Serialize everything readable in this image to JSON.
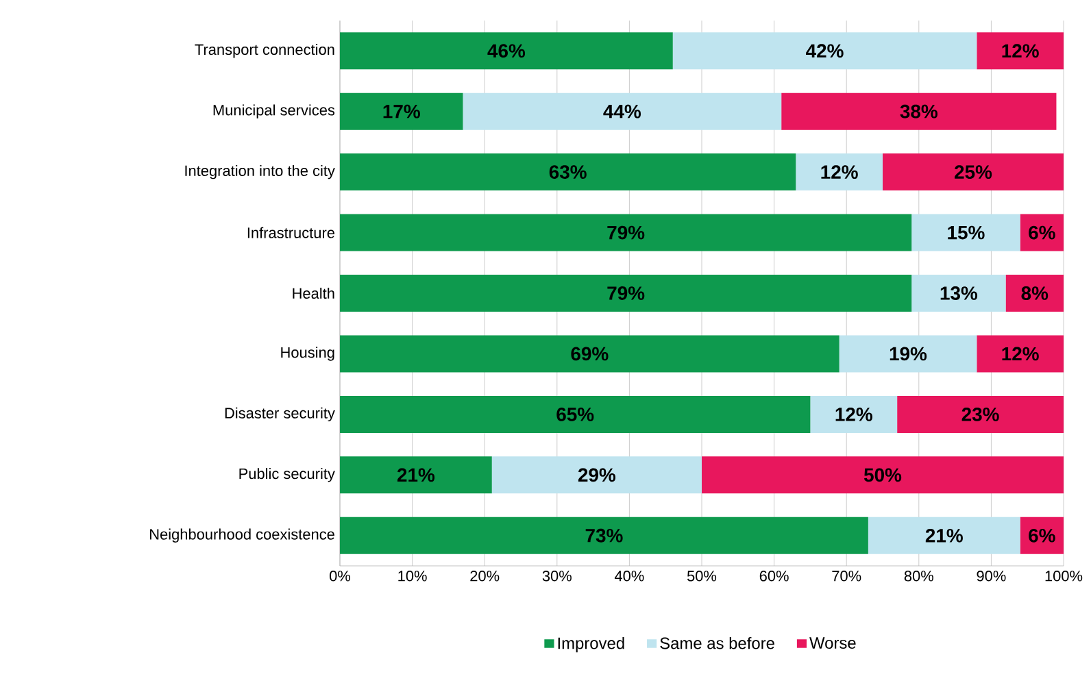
{
  "chart_data": {
    "type": "bar",
    "orientation": "horizontal",
    "stacked": true,
    "categories": [
      "Transport connection",
      "Municipal services",
      "Integration into the city",
      "Infrastructure",
      "Health",
      "Housing",
      "Disaster security",
      "Public security",
      "Neighbourhood coexistence"
    ],
    "series": [
      {
        "name": "Improved",
        "color": "#0e9a4e",
        "values": [
          46,
          17,
          63,
          79,
          79,
          69,
          65,
          21,
          73
        ],
        "value_labels": [
          "46%",
          "17%",
          "63%",
          "79%",
          "79%",
          "69%",
          "65%",
          "21%",
          "73%"
        ]
      },
      {
        "name": "Same as before",
        "color": "#bfe4ef",
        "values": [
          42,
          44,
          12,
          15,
          13,
          19,
          12,
          29,
          21
        ],
        "value_labels": [
          "42%",
          "44%",
          "12%",
          "15%",
          "13%",
          "19%",
          "12%",
          "29%",
          "21%"
        ]
      },
      {
        "name": "Worse",
        "color": "#e8175d",
        "values": [
          12,
          38,
          25,
          6,
          8,
          12,
          23,
          50,
          6
        ],
        "value_labels": [
          "12%",
          "38%",
          "25%",
          "6%",
          "8%",
          "12%",
          "23%",
          "50%",
          "6%"
        ]
      }
    ],
    "xlim": [
      0,
      100
    ],
    "xticks": [
      {
        "value": 0,
        "label": "0%"
      },
      {
        "value": 10,
        "label": "10%"
      },
      {
        "value": 20,
        "label": "20%"
      },
      {
        "value": 30,
        "label": "30%"
      },
      {
        "value": 40,
        "label": "40%"
      },
      {
        "value": 50,
        "label": "50%"
      },
      {
        "value": 60,
        "label": "60%"
      },
      {
        "value": 70,
        "label": "70%"
      },
      {
        "value": 80,
        "label": "80%"
      },
      {
        "value": 90,
        "label": "90%"
      },
      {
        "value": 100,
        "label": "100%"
      }
    ],
    "grid": "x",
    "legend": "bottom"
  }
}
